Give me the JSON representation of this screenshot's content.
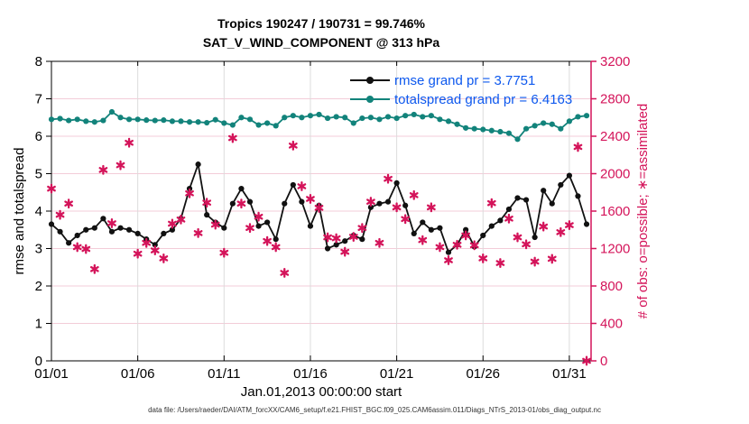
{
  "title_line1": "Tropics 190247 / 190731 = 99.746%",
  "title_line2": "SAT_V_WIND_COMPONENT @ 313 hPa",
  "footer_text": "data file: /Users/raeder/DAI/ATM_forcXX/CAM6_setup/f.e21.FHIST_BGC.f09_025.CAM6assim.011/Diags_NTrS_2013-01/obs_diag_output.nc",
  "colors": {
    "rmse": "#111111",
    "totalspread": "#12837b",
    "obs": "#d4145a",
    "legend_text": "#0d58ee",
    "grid_horizontal": "#f3ccd8",
    "grid_vertical": "#dcdcdc",
    "axis_left": "#000000",
    "axis_right": "#d4145a"
  },
  "chart_data": {
    "type": "line",
    "title": "Tropics 190247 / 190731 = 99.746%",
    "subtitle": "SAT_V_WIND_COMPONENT @ 313 hPa",
    "xlabel": "Jan.01,2013 00:00:00 start",
    "ylabel_left": "rmse and totalspread",
    "ylabel_right": "# of obs: o=possible; ∗=assimilated",
    "grid": true,
    "legend_position": "top-right-inside",
    "x_range": [
      0,
      31.26
    ],
    "y_left_range": [
      0,
      8
    ],
    "y_left_ticks": [
      0,
      1,
      2,
      3,
      4,
      5,
      6,
      7,
      8
    ],
    "y_right_range": [
      0,
      3200
    ],
    "y_right_ticks": [
      0,
      400,
      800,
      1200,
      1600,
      2000,
      2400,
      2800,
      3200
    ],
    "xticks": {
      "positions": [
        0,
        5,
        10,
        15,
        20,
        25,
        30
      ],
      "labels": [
        "01/01",
        "01/06",
        "01/11",
        "01/16",
        "01/21",
        "01/26",
        "01/31"
      ]
    },
    "x_days": [
      0,
      0.5,
      1,
      1.5,
      2,
      2.5,
      3,
      3.5,
      4,
      4.5,
      5,
      5.5,
      6,
      6.5,
      7,
      7.5,
      8,
      8.5,
      9,
      9.5,
      10,
      10.5,
      11,
      11.5,
      12,
      12.5,
      13,
      13.5,
      14,
      14.5,
      15,
      15.5,
      16,
      16.5,
      17,
      17.5,
      18,
      18.5,
      19,
      19.5,
      20,
      20.5,
      21,
      21.5,
      22,
      22.5,
      23,
      23.5,
      24,
      24.5,
      25,
      25.5,
      26,
      26.5,
      27,
      27.5,
      28,
      28.5,
      29,
      29.5,
      30,
      30.5,
      31
    ],
    "series": [
      {
        "name": "rmse",
        "label": "rmse grand pr = 3.7751",
        "grand_pr": 3.7751,
        "axis": "left",
        "style": "line-dot",
        "values": [
          3.65,
          3.45,
          3.15,
          3.35,
          3.5,
          3.55,
          3.8,
          3.45,
          3.55,
          3.5,
          3.4,
          3.25,
          3.1,
          3.4,
          3.5,
          3.8,
          4.6,
          5.25,
          3.9,
          3.7,
          3.55,
          4.2,
          4.6,
          4.25,
          3.6,
          3.7,
          3.25,
          4.2,
          4.7,
          4.25,
          3.6,
          4.15,
          3.0,
          3.1,
          3.2,
          3.35,
          3.25,
          4.1,
          4.2,
          4.25,
          4.75,
          4.15,
          3.4,
          3.7,
          3.5,
          3.55,
          2.9,
          3.1,
          3.5,
          3.05,
          3.35,
          3.6,
          3.75,
          4.05,
          4.35,
          4.3,
          3.3,
          4.55,
          4.2,
          4.7,
          4.95,
          4.4,
          3.65
        ]
      },
      {
        "name": "totalspread",
        "label": "totalspread grand pr = 6.4163",
        "grand_pr": 6.4163,
        "axis": "left",
        "style": "line-dot",
        "values": [
          6.45,
          6.47,
          6.42,
          6.45,
          6.4,
          6.38,
          6.42,
          6.65,
          6.5,
          6.45,
          6.45,
          6.43,
          6.42,
          6.43,
          6.4,
          6.4,
          6.38,
          6.38,
          6.36,
          6.44,
          6.35,
          6.3,
          6.5,
          6.45,
          6.3,
          6.35,
          6.28,
          6.5,
          6.55,
          6.5,
          6.55,
          6.58,
          6.48,
          6.52,
          6.5,
          6.35,
          6.48,
          6.5,
          6.45,
          6.52,
          6.48,
          6.55,
          6.58,
          6.52,
          6.55,
          6.45,
          6.4,
          6.32,
          6.22,
          6.2,
          6.18,
          6.15,
          6.12,
          6.08,
          5.92,
          6.2,
          6.28,
          6.35,
          6.32,
          6.2,
          6.4,
          6.52,
          6.55
        ]
      },
      {
        "name": "obs_assimilated",
        "label": "# of obs assimilated",
        "axis": "right",
        "style": "asterisk",
        "values": [
          1840,
          1560,
          1680,
          1215,
          1195,
          980,
          2040,
          1470,
          2090,
          2330,
          1145,
          1260,
          1180,
          1095,
          1465,
          1510,
          1790,
          1365,
          1690,
          1455,
          1155,
          2380,
          1680,
          1420,
          1540,
          1280,
          1215,
          940,
          2300,
          1865,
          1730,
          1635,
          1320,
          1310,
          1165,
          1325,
          1420,
          1700,
          1260,
          1945,
          1640,
          1515,
          1770,
          1290,
          1640,
          1215,
          1075,
          1240,
          1340,
          1235,
          1095,
          1685,
          1045,
          1520,
          1320,
          1245,
          1060,
          1435,
          1090,
          1375,
          1450,
          2285,
          0
        ]
      }
    ]
  }
}
